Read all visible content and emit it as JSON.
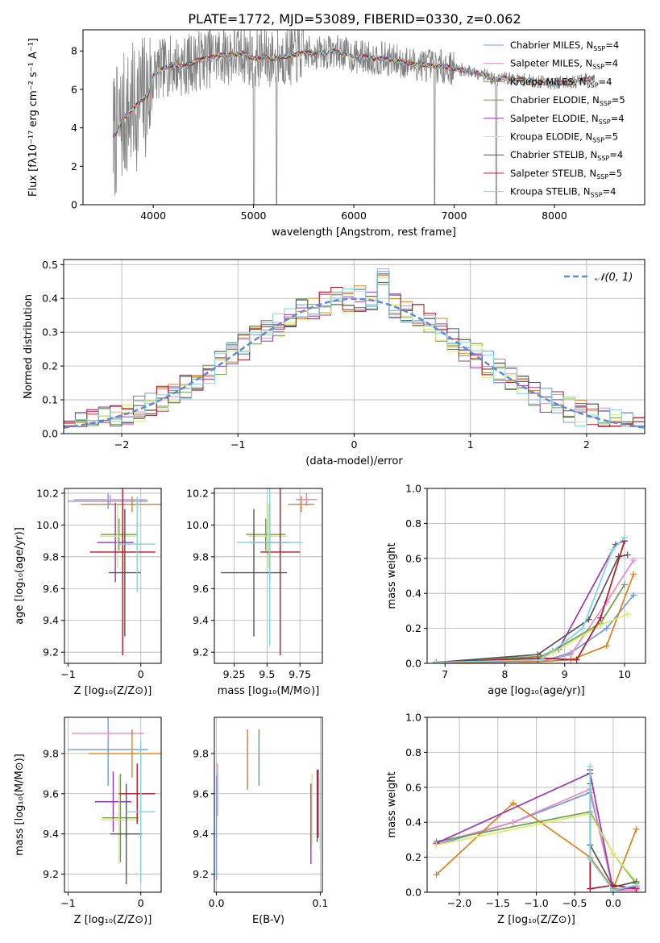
{
  "figure": {
    "title": "PLATE=1772, MJD=53089, FIBERID=0330, z=0.062"
  },
  "models": [
    {
      "name": "Chabrier MILES",
      "nssp": "4",
      "color": "#6d9bdc"
    },
    {
      "name": "Salpeter MILES",
      "nssp": "4",
      "color": "#e68ac3"
    },
    {
      "name": "Kroupa MILES",
      "nssp": "4",
      "color": "#d9821f"
    },
    {
      "name": "Chabrier ELODIE",
      "nssp": "5",
      "color": "#6e9e4e"
    },
    {
      "name": "Salpeter ELODIE",
      "nssp": "4",
      "color": "#9a38b4"
    },
    {
      "name": "Kroupa ELODIE",
      "nssp": "5",
      "color": "#d9ec66"
    },
    {
      "name": "Chabrier STELIB",
      "nssp": "4",
      "color": "#555555"
    },
    {
      "name": "Salpeter STELIB",
      "nssp": "5",
      "color": "#b2182b"
    },
    {
      "name": "Kroupa STELIB",
      "nssp": "4",
      "color": "#7fd4e0"
    }
  ],
  "chart_data": [
    {
      "id": "spectrum",
      "type": "line",
      "xlabel": "wavelength [Angstrom, rest frame]",
      "ylabel": "Flux [fλ10⁻¹⁷ erg cm⁻² s⁻¹ A⁻¹]",
      "xlim": [
        3300,
        8900
      ],
      "ylim": [
        0,
        9.1
      ],
      "xticks": [
        4000,
        5000,
        6000,
        7000,
        8000
      ],
      "yticks": [
        0,
        2,
        4,
        6,
        8
      ],
      "legend": "top-right",
      "data_color": "#808080",
      "continuum": {
        "x": [
          3600,
          3650,
          3700,
          3750,
          3800,
          3850,
          3900,
          3950,
          4000,
          4100,
          4200,
          4300,
          4400,
          4500,
          4600,
          4700,
          4800,
          4900,
          5000,
          5100,
          5200,
          5300,
          5400,
          5500,
          5600,
          5700,
          5800,
          5900,
          6000,
          6100,
          6200,
          6300,
          6400,
          6500,
          6600,
          6700,
          6800,
          6900,
          7000,
          7100,
          7200,
          7300,
          7400,
          7500,
          7600,
          7700,
          7800,
          7900,
          8000,
          8100,
          8200,
          8300,
          8400
        ],
        "y": [
          3.5,
          3.9,
          4.5,
          4.7,
          5.0,
          5.3,
          5.5,
          5.7,
          6.8,
          7.1,
          7.3,
          7.2,
          7.4,
          7.6,
          7.7,
          7.8,
          7.8,
          7.9,
          7.6,
          7.7,
          7.6,
          7.7,
          7.8,
          7.9,
          7.9,
          7.9,
          8.0,
          7.9,
          7.7,
          7.7,
          7.6,
          7.6,
          7.5,
          7.4,
          7.3,
          7.3,
          7.2,
          7.2,
          7.1,
          7.0,
          6.9,
          6.8,
          6.5,
          6.6,
          6.5,
          6.5,
          6.4,
          6.4,
          6.3,
          6.4,
          6.4,
          6.5,
          6.5
        ]
      }
    },
    {
      "id": "residuals",
      "type": "step",
      "xlabel": "(data-model)/error",
      "ylabel": "Normed distribution",
      "xlim": [
        -2.5,
        2.5
      ],
      "ylim": [
        0,
        0.515
      ],
      "xticks": [
        -2,
        -1,
        0,
        1,
        2
      ],
      "yticks": [
        0.0,
        0.1,
        0.2,
        0.3,
        0.4,
        0.5
      ],
      "grid": true,
      "legend_label": "𝒩(0, 1)",
      "legend": "top-right",
      "bin_width": 0.1,
      "bins_start": -2.5,
      "base_profile": [
        0.03,
        0.03,
        0.04,
        0.05,
        0.05,
        0.06,
        0.07,
        0.08,
        0.09,
        0.1,
        0.12,
        0.13,
        0.14,
        0.16,
        0.18,
        0.19,
        0.22,
        0.24,
        0.3,
        0.3,
        0.31,
        0.28,
        0.3,
        0.31,
        0.33,
        0.34,
        0.35,
        0.36,
        0.37,
        0.36,
        0.37,
        0.36,
        0.4,
        0.48,
        0.3,
        0.36,
        0.34,
        0.33,
        0.32,
        0.31,
        0.28,
        0.31,
        0.29,
        0.3,
        0.25,
        0.28,
        0.26,
        0.24,
        0.24,
        0.19,
        0.2,
        0.17,
        0.16,
        0.14,
        0.13,
        0.12,
        0.11,
        0.1,
        0.09,
        0.08,
        0.08,
        0.07,
        0.06,
        0.05,
        0.05,
        0.04,
        0.04,
        0.04,
        0.03,
        0.03,
        0.03,
        0.03,
        0.03,
        0.03,
        0.03,
        0.03,
        0.03,
        0.03,
        0.03,
        0.03,
        0.03,
        0.03,
        0.03,
        0.03,
        0.03,
        0.03,
        0.03,
        0.03,
        0.03,
        0.03,
        0.03,
        0.03,
        0.03,
        0.03,
        0.03,
        0.03,
        0.03,
        0.03,
        0.03,
        0.03
      ]
    },
    {
      "id": "age-vs-z",
      "type": "errorbar",
      "xlabel": "Z [log₁₀(Z/Z⊙)]",
      "ylabel": "age [log₁₀(age/yr)]",
      "xlim": [
        -1.05,
        0.28
      ],
      "ylim": [
        9.13,
        10.23
      ],
      "xticks": [
        -1,
        0
      ],
      "yticks": [
        9.2,
        9.4,
        9.6,
        9.8,
        10.0,
        10.2
      ],
      "points": [
        {
          "x": -0.45,
          "xerr": 0.55,
          "y": 10.15,
          "yerr": 0.05
        },
        {
          "x": -0.42,
          "xerr": 0.5,
          "y": 10.16,
          "yerr": 0.03
        },
        {
          "x": -0.12,
          "xerr": 0.7,
          "y": 10.13,
          "yerr": 0.05
        },
        {
          "x": -0.3,
          "xerr": 0.25,
          "y": 9.94,
          "yerr": 0.1
        },
        {
          "x": -0.35,
          "xerr": 0.25,
          "y": 9.89,
          "yerr": 0.25
        },
        {
          "x": -0.32,
          "xerr": 0.25,
          "y": 9.93,
          "yerr": 0.2
        },
        {
          "x": -0.22,
          "xerr": 0.22,
          "y": 9.7,
          "yerr": 0.4
        },
        {
          "x": -0.25,
          "xerr": 0.45,
          "y": 9.83,
          "yerr": 0.65
        },
        {
          "x": -0.05,
          "xerr": 0.25,
          "y": 9.88,
          "yerr": 0.3
        }
      ]
    },
    {
      "id": "age-vs-mass",
      "type": "errorbar",
      "xlabel": "mass [log₁₀(M/M⊙)]",
      "ylabel": "",
      "xlim": [
        9.1,
        9.92
      ],
      "ylim": [
        9.13,
        10.23
      ],
      "xticks": [
        9.25,
        9.5,
        9.75
      ],
      "yticks": [
        9.2,
        9.4,
        9.6,
        9.8,
        10.0,
        10.2
      ],
      "points": [
        {
          "x": 9.8,
          "xerr": 0.08,
          "y": 10.16,
          "yerr": 0.04
        },
        {
          "x": 9.8,
          "xerr": 0.08,
          "y": 10.16,
          "yerr": 0.03
        },
        {
          "x": 9.76,
          "xerr": 0.1,
          "y": 10.13,
          "yerr": 0.05
        },
        {
          "x": 9.49,
          "xerr": 0.15,
          "y": 9.94,
          "yerr": 0.1
        },
        {
          "x": 9.52,
          "xerr": 0.15,
          "y": 9.89,
          "yerr": 0.25
        },
        {
          "x": 9.51,
          "xerr": 0.15,
          "y": 9.93,
          "yerr": 0.2
        },
        {
          "x": 9.4,
          "xerr": 0.25,
          "y": 9.7,
          "yerr": 0.4
        },
        {
          "x": 9.6,
          "xerr": 0.15,
          "y": 9.83,
          "yerr": 0.65
        },
        {
          "x": 9.52,
          "xerr": 0.25,
          "y": 9.89,
          "yerr": 0.65
        }
      ]
    },
    {
      "id": "mass-weight-vs-age",
      "type": "line",
      "xlabel": "age [log₁₀(age/yr)]",
      "ylabel": "mass weight",
      "xlim": [
        6.7,
        10.35
      ],
      "ylim": [
        0,
        1.0
      ],
      "xticks": [
        7,
        8,
        9,
        10
      ],
      "yticks": [
        0.0,
        0.2,
        0.4,
        0.6,
        0.8,
        1.0
      ],
      "series": [
        {
          "x": [
            6.85,
            8.6,
            9.1,
            9.7,
            10.15
          ],
          "y": [
            0.005,
            0.01,
            0.06,
            0.2,
            0.39
          ]
        },
        {
          "x": [
            6.85,
            8.6,
            9.1,
            9.7,
            10.15
          ],
          "y": [
            0.005,
            0.01,
            0.05,
            0.35,
            0.59
          ]
        },
        {
          "x": [
            6.85,
            8.6,
            9.1,
            9.7,
            10.15
          ],
          "y": [
            0.005,
            0.01,
            0.02,
            0.1,
            0.51
          ]
        },
        {
          "x": [
            6.85,
            8.6,
            8.8,
            9.6,
            10.0
          ],
          "y": [
            0.005,
            0.04,
            0.07,
            0.23,
            0.45
          ]
        },
        {
          "x": [
            6.85,
            8.55,
            8.9,
            9.85,
            10.0
          ],
          "y": [
            0.005,
            0.02,
            0.08,
            0.68,
            0.7
          ]
        },
        {
          "x": [
            6.85,
            8.6,
            8.8,
            9.6,
            10.05
          ],
          "y": [
            0.005,
            0.03,
            0.06,
            0.22,
            0.28
          ]
        },
        {
          "x": [
            6.85,
            8.55,
            9.4,
            9.9,
            10.05
          ],
          "y": [
            0.005,
            0.05,
            0.25,
            0.61,
            0.62
          ]
        },
        {
          "x": [
            6.85,
            8.6,
            9.2,
            9.6,
            10.0
          ],
          "y": [
            0.005,
            0.03,
            0.02,
            0.26,
            0.7
          ]
        },
        {
          "x": [
            6.85,
            8.6,
            9.3,
            9.8,
            10.0
          ],
          "y": [
            0.005,
            0.02,
            0.2,
            0.65,
            0.72
          ]
        }
      ]
    },
    {
      "id": "mass-vs-z",
      "type": "errorbar",
      "xlabel": "Z [log₁₀(Z/Z⊙)]",
      "ylabel": "mass [log₁₀(M/M⊙)]",
      "xlim": [
        -1.05,
        0.28
      ],
      "ylim": [
        9.11,
        9.98
      ],
      "xticks": [
        -1,
        0
      ],
      "yticks": [
        9.2,
        9.4,
        9.6,
        9.8
      ],
      "points": [
        {
          "x": -0.45,
          "xerr": 0.55,
          "y": 9.82,
          "yerr": 0.18
        },
        {
          "x": -0.45,
          "xerr": 0.5,
          "y": 9.9,
          "yerr": 0.03
        },
        {
          "x": -0.12,
          "xerr": 0.6,
          "y": 9.8,
          "yerr": 0.12
        },
        {
          "x": -0.28,
          "xerr": 0.25,
          "y": 9.48,
          "yerr": 0.22
        },
        {
          "x": -0.38,
          "xerr": 0.25,
          "y": 9.56,
          "yerr": 0.15
        },
        {
          "x": -0.3,
          "xerr": 0.25,
          "y": 9.47,
          "yerr": 0.22
        },
        {
          "x": -0.2,
          "xerr": 0.22,
          "y": 9.4,
          "yerr": 0.25
        },
        {
          "x": -0.05,
          "xerr": 0.25,
          "y": 9.6,
          "yerr": 0.15
        },
        {
          "x": 0.0,
          "xerr": 0.2,
          "y": 9.51,
          "yerr": 0.35
        }
      ]
    },
    {
      "id": "mass-vs-ebv",
      "type": "errorbar",
      "xlabel": "E(B-V)",
      "ylabel": "",
      "xlim": [
        -0.002,
        0.102
      ],
      "ylim": [
        9.11,
        9.98
      ],
      "xticks": [
        0.0,
        0.1
      ],
      "yticks": [
        9.2,
        9.4,
        9.6,
        9.8
      ],
      "points": [
        {
          "x": 0.0,
          "xerr": 0,
          "y": 9.43,
          "yerr": 0.26
        },
        {
          "x": 0.001,
          "xerr": 0,
          "y": 9.62,
          "yerr": 0.13
        },
        {
          "x": 0.03,
          "xerr": 0,
          "y": 9.77,
          "yerr": 0.15
        },
        {
          "x": 0.041,
          "xerr": 0,
          "y": 9.78,
          "yerr": 0.14
        },
        {
          "x": 0.091,
          "xerr": 0,
          "y": 9.45,
          "yerr": 0.2
        },
        {
          "x": 0.092,
          "xerr": 0,
          "y": 9.52,
          "yerr": 0.18
        },
        {
          "x": 0.097,
          "xerr": 0,
          "y": 9.54,
          "yerr": 0.18
        },
        {
          "x": 0.098,
          "xerr": 0,
          "y": 9.55,
          "yerr": 0.17
        },
        {
          "x": 0.1,
          "xerr": 0,
          "y": 9.5,
          "yerr": 0.18
        }
      ]
    },
    {
      "id": "mass-weight-vs-z",
      "type": "line",
      "xlabel": "Z [log₁₀(Z/Z⊙)]",
      "ylabel": "mass weight",
      "xlim": [
        -2.42,
        0.42
      ],
      "ylim": [
        0,
        1.0
      ],
      "xticks": [
        -2.0,
        -1.5,
        -1.0,
        -0.5,
        0.0
      ],
      "yticks": [
        0.0,
        0.2,
        0.4,
        0.6,
        0.8,
        1.0
      ],
      "series": [
        {
          "x": [
            -2.3,
            -1.3,
            -0.3,
            0.0,
            0.3
          ],
          "y": [
            0.27,
            0.4,
            0.57,
            0.02,
            0.02
          ]
        },
        {
          "x": [
            -2.3,
            -1.3,
            -0.3,
            0.0,
            0.3
          ],
          "y": [
            0.28,
            0.4,
            0.59,
            0.01,
            0.01
          ]
        },
        {
          "x": [
            -2.3,
            -1.3,
            -0.3,
            0.0,
            0.3
          ],
          "y": [
            0.1,
            0.51,
            0.2,
            0.02,
            0.36
          ]
        },
        {
          "x": [
            -2.3,
            -0.3,
            0.0,
            0.3
          ],
          "y": [
            0.29,
            0.46,
            0.22,
            0.05
          ]
        },
        {
          "x": [
            -2.3,
            -0.3,
            0.0,
            0.3
          ],
          "y": [
            0.28,
            0.68,
            0.01,
            0.03
          ]
        },
        {
          "x": [
            -2.3,
            -0.3,
            0.0,
            0.3
          ],
          "y": [
            0.27,
            0.45,
            0.22,
            0.06
          ]
        },
        {
          "x": [
            -0.3,
            -0.3,
            0.0,
            0.3
          ],
          "y": [
            0.62,
            0.27,
            0.03,
            0.06
          ]
        },
        {
          "x": [
            -0.3,
            -0.3,
            0.0,
            0.3
          ],
          "y": [
            0.7,
            0.02,
            0.04,
            0.02
          ]
        },
        {
          "x": [
            -0.3,
            -0.3,
            0.0,
            0.3
          ],
          "y": [
            0.72,
            0.19,
            0.01,
            0.04
          ]
        }
      ]
    }
  ]
}
